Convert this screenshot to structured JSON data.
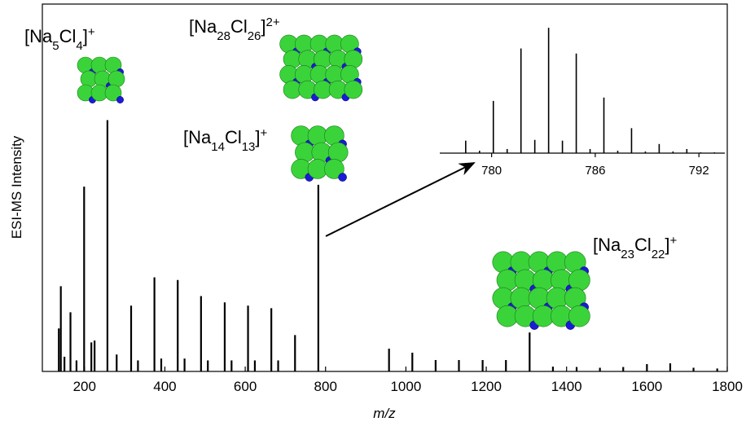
{
  "chart_data": [
    {
      "type": "stem",
      "xlabel": "m/z",
      "ylabel": "ESI-MS Intensity",
      "xlim": [
        95,
        1800
      ],
      "ylim": [
        0,
        100
      ],
      "xticks": [
        200,
        400,
        600,
        800,
        1000,
        1200,
        1400,
        1600,
        1800
      ],
      "color": "#000000",
      "x": [
        136,
        141,
        150,
        165,
        180,
        199,
        217,
        225,
        257,
        280,
        316,
        333,
        374,
        391,
        432,
        449,
        490,
        507,
        549,
        566,
        607,
        624,
        665,
        682,
        724,
        782,
        958,
        1016,
        1074,
        1132,
        1191,
        1249,
        1308,
        1366,
        1425,
        1483,
        1541,
        1600,
        1658,
        1716,
        1775
      ],
      "values": [
        11.7,
        23.2,
        4,
        16.1,
        3,
        50.3,
        7.9,
        8.4,
        68.4,
        4.6,
        17.9,
        3,
        25.6,
        3.5,
        24.9,
        3.5,
        20.5,
        3,
        18.8,
        3,
        17.9,
        3,
        17.2,
        3,
        9.9,
        50.8,
        6.2,
        5.1,
        3.1,
        3.1,
        3.1,
        3.1,
        10.6,
        1.3,
        1.2,
        1.0,
        1.2,
        2.0,
        2.2,
        1.0,
        0.8
      ],
      "annotations": [
        {
          "parts": [
            "[Na",
            "5",
            "Cl",
            "4",
            "]",
            "+"
          ]
        },
        {
          "parts": [
            "[Na",
            "28",
            "Cl",
            "26",
            "]",
            "2+"
          ]
        },
        {
          "parts": [
            "[Na",
            "14",
            "Cl",
            "13",
            "]",
            "+"
          ]
        },
        {
          "parts": [
            "[Na",
            "23",
            "Cl",
            "22",
            "]",
            "+"
          ]
        }
      ]
    },
    {
      "type": "stem",
      "xlim": [
        777,
        793.5
      ],
      "ylim": [
        0,
        100
      ],
      "xticks": [
        780,
        786,
        792
      ],
      "color": "#000000",
      "x": [
        778.5,
        779.3,
        780.1,
        780.9,
        781.7,
        782.5,
        783.3,
        784.1,
        784.9,
        785.7,
        786.5,
        787.3,
        788.1,
        788.9,
        789.7,
        790.5,
        791.3,
        792.1,
        792.9
      ],
      "values": [
        9.7,
        1.9,
        40.6,
        3.2,
        81.3,
        10.3,
        97.4,
        9.7,
        77.4,
        3.2,
        43.2,
        1.9,
        19.4,
        1.3,
        7.1,
        1.3,
        3.2,
        0.6,
        0.6
      ]
    }
  ]
}
